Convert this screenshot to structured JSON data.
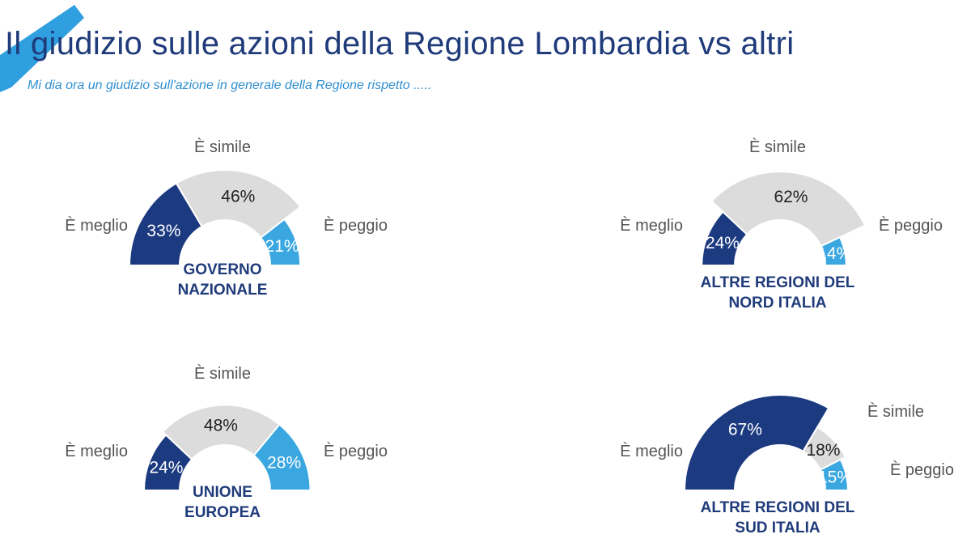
{
  "title": "Il giudizio sulle azioni della Regione Lombardia vs altri",
  "subtitle": "Mi dia ora un giudizio sull'azione in generale della Regione rispetto .....",
  "colors": {
    "meglio": "#1c3a80",
    "simile": "#dcdcdc",
    "peggio": "#3aa7e0",
    "title": "#1f3b7a",
    "accent": "#2f9fe0"
  },
  "chart_data": [
    {
      "type": "pie",
      "title": [
        "GOVERNO",
        "NAZIONALE"
      ],
      "categories": [
        "È meglio",
        "È simile",
        "È peggio"
      ],
      "values": [
        33,
        46,
        21
      ],
      "value_labels": [
        "33%",
        "46%",
        "21%"
      ]
    },
    {
      "type": "pie",
      "title": [
        "ALTRE REGIONI DEL",
        "NORD ITALIA"
      ],
      "categories": [
        "È meglio",
        "È simile",
        "È peggio"
      ],
      "values": [
        24,
        62,
        14
      ],
      "value_labels": [
        "24%",
        "62%",
        "14%"
      ]
    },
    {
      "type": "pie",
      "title": [
        "UNIONE",
        "EUROPEA"
      ],
      "categories": [
        "È meglio",
        "È simile",
        "È peggio"
      ],
      "values": [
        24,
        48,
        28
      ],
      "value_labels": [
        "24%",
        "48%",
        "28%"
      ]
    },
    {
      "type": "pie",
      "title": [
        "ALTRE REGIONI DEL",
        "SUD ITALIA"
      ],
      "categories": [
        "È meglio",
        "È simile",
        "È peggio"
      ],
      "values": [
        67,
        18,
        15
      ],
      "value_labels": [
        "67%",
        "18%",
        "15%"
      ]
    }
  ]
}
